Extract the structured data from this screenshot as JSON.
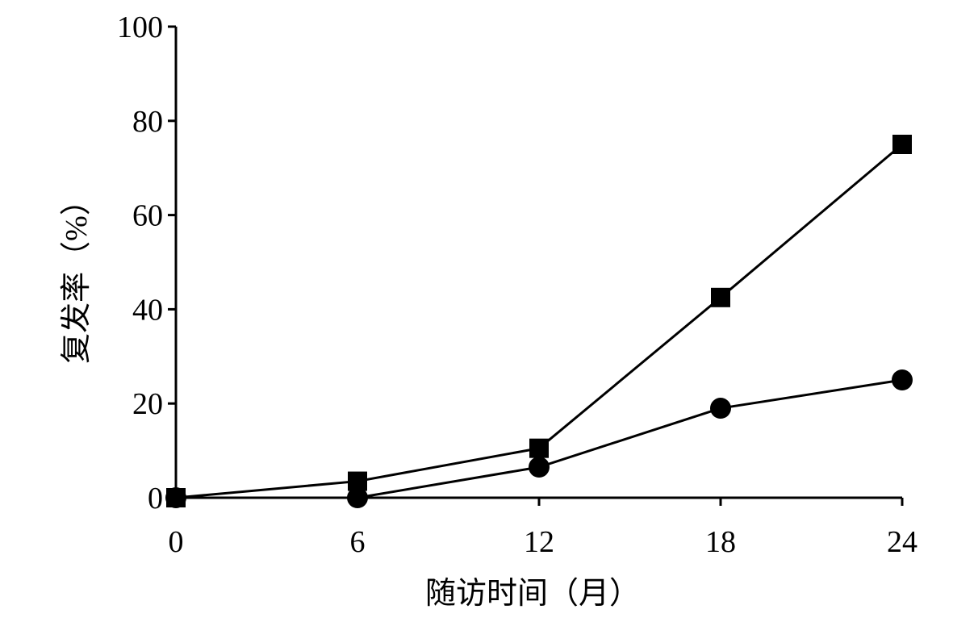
{
  "chart_data": {
    "type": "line",
    "title": "",
    "xlabel": "随访时间（月）",
    "ylabel": "复发率（%）",
    "x": [
      0,
      6,
      12,
      18,
      24
    ],
    "xlim": [
      0,
      24
    ],
    "ylim": [
      0,
      100
    ],
    "x_ticks": [
      "0",
      "6",
      "12",
      "18",
      "24"
    ],
    "y_ticks": [
      "0",
      "20",
      "40",
      "60",
      "80",
      "100"
    ],
    "grid": false,
    "legend": "none",
    "series": [
      {
        "marker": "square",
        "color": "#000000",
        "values": [
          0,
          3.5,
          10.5,
          42.5,
          75
        ]
      },
      {
        "marker": "circle",
        "color": "#000000",
        "values": [
          0,
          0,
          6.5,
          19,
          25
        ]
      }
    ]
  }
}
